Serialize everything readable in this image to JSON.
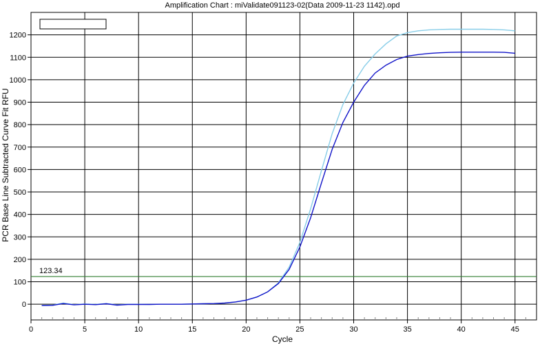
{
  "chart_data": {
    "type": "line",
    "title": "Amplification Chart : miValidate091123-02(Data 2009-11-23 1142).opd",
    "xlabel": "Cycle",
    "ylabel": "PCR Base Line Subtracted Curve Fit RFU",
    "xlim": [
      0,
      47
    ],
    "ylim": [
      -70,
      1300
    ],
    "xticks": [
      0,
      5,
      10,
      15,
      20,
      25,
      30,
      35,
      40,
      45
    ],
    "yticks": [
      0,
      100,
      200,
      300,
      400,
      500,
      600,
      700,
      800,
      900,
      1000,
      1100,
      1200
    ],
    "grid": true,
    "legend": {
      "location": "top-left",
      "entries": []
    },
    "threshold": {
      "value": 123.34,
      "label": "123.34",
      "color": "#2f7d2f"
    },
    "series_colors": [
      "#87cde8",
      "#0f12c8"
    ],
    "series": [
      {
        "color": "#87cde8",
        "x": [
          1,
          2,
          3,
          4,
          5,
          6,
          7,
          8,
          9,
          10,
          11,
          12,
          13,
          14,
          15,
          16,
          17,
          18,
          19,
          20,
          21,
          22,
          23,
          24,
          25,
          26,
          27,
          28,
          29,
          30,
          31,
          32,
          33,
          34,
          35,
          36,
          37,
          38,
          39,
          40,
          41,
          42,
          43,
          44,
          45
        ],
        "y": [
          -5,
          -4,
          5,
          -2,
          1,
          -1,
          3,
          -3,
          0,
          0,
          -1,
          0,
          0,
          0,
          1,
          2,
          3,
          5,
          10,
          18,
          32,
          55,
          95,
          165,
          275,
          425,
          595,
          760,
          890,
          985,
          1060,
          1115,
          1160,
          1195,
          1210,
          1218,
          1222,
          1224,
          1225,
          1225,
          1225,
          1225,
          1224,
          1222,
          1218
        ]
      },
      {
        "color": "#0f12c8",
        "x": [
          1,
          2,
          3,
          4,
          5,
          6,
          7,
          8,
          9,
          10,
          11,
          12,
          13,
          14,
          15,
          16,
          17,
          18,
          19,
          20,
          21,
          22,
          23,
          24,
          25,
          26,
          27,
          28,
          29,
          30,
          31,
          32,
          33,
          34,
          35,
          36,
          37,
          38,
          39,
          40,
          41,
          42,
          43,
          44,
          45
        ],
        "y": [
          -6,
          -5,
          3,
          -3,
          0,
          -2,
          2,
          -4,
          -1,
          -1,
          -1,
          0,
          0,
          0,
          1,
          2,
          3,
          5,
          10,
          18,
          32,
          55,
          92,
          155,
          255,
          385,
          540,
          690,
          810,
          900,
          975,
          1030,
          1065,
          1090,
          1105,
          1112,
          1117,
          1120,
          1122,
          1123,
          1123,
          1123,
          1123,
          1122,
          1118
        ]
      }
    ]
  }
}
